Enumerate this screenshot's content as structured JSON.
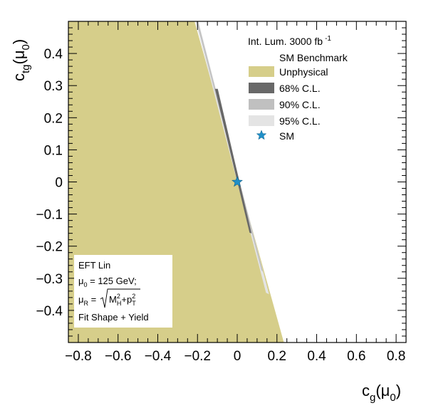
{
  "chart_data": {
    "type": "contour",
    "xlim": [
      -0.85,
      0.85
    ],
    "ylim": [
      -0.5,
      0.5
    ],
    "x_ticks": [
      -0.8,
      -0.6,
      -0.4,
      -0.2,
      0,
      0.2,
      0.4,
      0.6,
      0.8
    ],
    "y_ticks": [
      -0.4,
      -0.3,
      -0.2,
      -0.1,
      0,
      0.1,
      0.2,
      0.3,
      0.4
    ],
    "x_tick_labels": [
      "−0.8",
      "−0.6",
      "−0.4",
      "−0.2",
      "0",
      "0.2",
      "0.4",
      "0.6",
      "0.8"
    ],
    "y_tick_labels": [
      "−0.4",
      "−0.3",
      "−0.2",
      "−0.1",
      "0",
      "0.1",
      "0.2",
      "0.3",
      "0.4"
    ],
    "xlabel": {
      "main": "c",
      "sub": "g",
      "arg": "(μ",
      "arg_sub": "0",
      "close": ")"
    },
    "ylabel": {
      "main": "c",
      "sub": "tg",
      "arg": "(μ",
      "arg_sub": "0",
      "close": ")"
    },
    "regions": {
      "unphysical": {
        "polygon": [
          [
            -0.85,
            0.5
          ],
          [
            -0.215,
            0.5
          ],
          [
            0.235,
            -0.5
          ],
          [
            -0.85,
            -0.5
          ]
        ]
      },
      "cl95": {
        "polygon": [
          [
            -0.21,
            0.5
          ],
          [
            -0.195,
            0.5
          ],
          [
            0.16,
            -0.35
          ],
          [
            0.145,
            -0.345
          ]
        ]
      },
      "cl90": {
        "polygon": [
          [
            -0.205,
            0.5
          ],
          [
            -0.198,
            0.5
          ],
          [
            0.13,
            -0.28
          ],
          [
            0.122,
            -0.275
          ]
        ]
      },
      "cl68": {
        "polygon": [
          [
            -0.112,
            0.29
          ],
          [
            -0.098,
            0.29
          ],
          [
            0.072,
            -0.16
          ],
          [
            0.062,
            -0.158
          ]
        ]
      }
    },
    "sm_point": [
      0,
      0
    ],
    "legend": {
      "header": "Int. Lum. 3000 fb",
      "header_sup": "-1",
      "header_line2": "SM Benchmark",
      "entries": [
        {
          "label": "Unphysical",
          "color": "#d6ce8a"
        },
        {
          "label": "68% C.L.",
          "color": "#686868"
        },
        {
          "label": "90% C.L.",
          "color": "#c0c0c0"
        },
        {
          "label": "95% C.L.",
          "color": "#e4e4e4"
        },
        {
          "label": "SM",
          "color": "#1f8fc8",
          "marker": "star"
        }
      ]
    },
    "info_box": {
      "line1": "EFT Lin",
      "line2": {
        "main": "μ",
        "sub": "0",
        "rest": " = 125 GeV;"
      },
      "line3": {
        "main": "μ",
        "sub": "R",
        "eq": " = ",
        "m": "M",
        "m_sup": "2",
        "m_sub": "H",
        "plus": "+p",
        "p_sup": "2",
        "p_sub": "T"
      },
      "line4": "Fit Shape + Yield"
    },
    "colors": {
      "unphysical": "#d6ce8a",
      "cl68": "#686868",
      "cl90": "#c0c0c0",
      "cl95": "#e4e4e4",
      "sm": "#1f8fc8",
      "axis": "#000000"
    }
  }
}
